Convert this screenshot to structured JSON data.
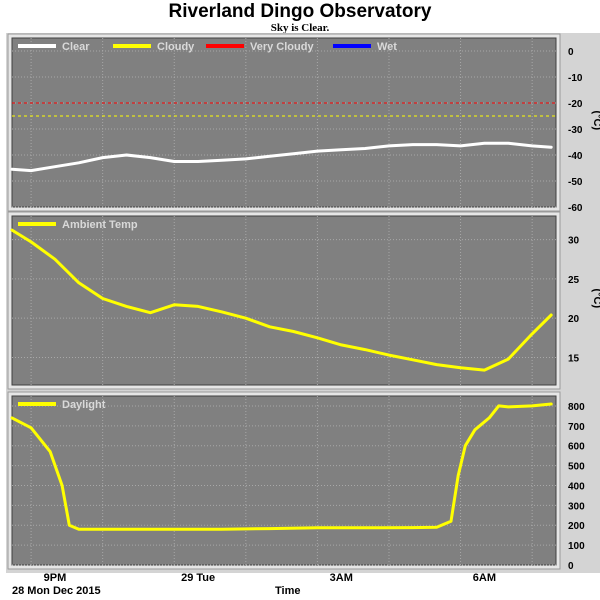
{
  "header": {
    "title": "Riverland Dingo Observatory",
    "subtitle": "Sky is Clear."
  },
  "footer": {
    "date": "28 Mon Dec 2015",
    "xaxis_title": "Time"
  },
  "colors": {
    "plot_background": "#808080",
    "gridline": "#a8a8a8",
    "clear": "#ffffff",
    "cloudy": "#ffff00",
    "very_cloudy": "#ff0000",
    "wet": "#0000ff",
    "ambient": "#ffff00",
    "daylight": "#ffff00"
  },
  "chart_data": [
    {
      "type": "line",
      "x_tick_labels": [
        "9PM",
        "29 Tue",
        "3AM",
        "6AM"
      ],
      "x_tick_hours": [
        21,
        24,
        27,
        30
      ],
      "xlim": [
        20.1,
        31.5
      ],
      "legend": [
        "Clear",
        "Cloudy",
        "Very Cloudy",
        "Wet"
      ],
      "legend_position": "top-left",
      "ylabel": "(°C)",
      "ylim": [
        -60,
        5
      ],
      "y_ticks": [
        0,
        -10,
        -20,
        -30,
        -40,
        -50,
        -60
      ],
      "thresholds": [
        {
          "series": "Very Cloudy",
          "value": -20
        },
        {
          "series": "Cloudy",
          "value": -25
        }
      ],
      "series": [
        {
          "name": "Clear",
          "x": [
            20.1,
            20.5,
            21.0,
            21.5,
            22.0,
            22.5,
            23.0,
            23.5,
            24.0,
            24.5,
            25.0,
            25.5,
            26.0,
            26.5,
            27.0,
            27.5,
            28.0,
            28.5,
            29.0,
            29.5,
            30.0,
            30.5,
            31.0,
            31.4
          ],
          "values": [
            -45.5,
            -46,
            -44.5,
            -43,
            -41,
            -40,
            -41,
            -42.5,
            -42.5,
            -42,
            -41.5,
            -40.5,
            -39.5,
            -38.5,
            -38,
            -37.5,
            -36.5,
            -36,
            -36,
            -36.5,
            -35.5,
            -35.5,
            -36.5,
            -37
          ]
        }
      ]
    },
    {
      "type": "line",
      "x_tick_labels": [
        "9PM",
        "29 Tue",
        "3AM",
        "6AM"
      ],
      "x_tick_hours": [
        21,
        24,
        27,
        30
      ],
      "xlim": [
        20.1,
        31.5
      ],
      "legend": [
        "Ambient Temp"
      ],
      "legend_position": "top-left",
      "ylabel": "(°C)",
      "ylim": [
        11.5,
        33
      ],
      "y_ticks": [
        30,
        25,
        20,
        15
      ],
      "series": [
        {
          "name": "Ambient Temp",
          "x": [
            20.1,
            20.5,
            21.0,
            21.5,
            22.0,
            22.5,
            23.0,
            23.5,
            24.0,
            24.5,
            25.0,
            25.5,
            26.0,
            26.5,
            27.0,
            27.5,
            28.0,
            28.5,
            29.0,
            29.5,
            30.0,
            30.5,
            31.0,
            31.4
          ],
          "values": [
            31.2,
            29.7,
            27.5,
            24.5,
            22.5,
            21.5,
            20.7,
            21.7,
            21.5,
            20.8,
            20.0,
            18.9,
            18.3,
            17.5,
            16.6,
            16.0,
            15.3,
            14.7,
            14.1,
            13.7,
            13.4,
            14.8,
            18.0,
            20.4
          ]
        }
      ]
    },
    {
      "type": "line",
      "x_tick_labels": [
        "9PM",
        "29 Tue",
        "3AM",
        "6AM"
      ],
      "x_tick_hours": [
        21,
        24,
        27,
        30
      ],
      "xlim": [
        20.1,
        31.5
      ],
      "legend": [
        "Daylight"
      ],
      "legend_position": "top-left",
      "ylim": [
        0,
        850
      ],
      "y_ticks": [
        800,
        700,
        600,
        500,
        400,
        300,
        200,
        100,
        0
      ],
      "series": [
        {
          "name": "Daylight",
          "x": [
            20.1,
            20.5,
            20.9,
            21.15,
            21.3,
            21.5,
            21.9,
            22.5,
            23.5,
            24.5,
            25.5,
            26.5,
            27.5,
            28.5,
            29.0,
            29.3,
            29.45,
            29.6,
            29.8,
            30.1,
            30.3,
            30.5,
            31.0,
            31.4
          ],
          "values": [
            740,
            690,
            570,
            400,
            200,
            180,
            180,
            180,
            180,
            180,
            183,
            187,
            187,
            188,
            190,
            220,
            450,
            600,
            680,
            740,
            800,
            795,
            800,
            810
          ]
        }
      ]
    }
  ]
}
